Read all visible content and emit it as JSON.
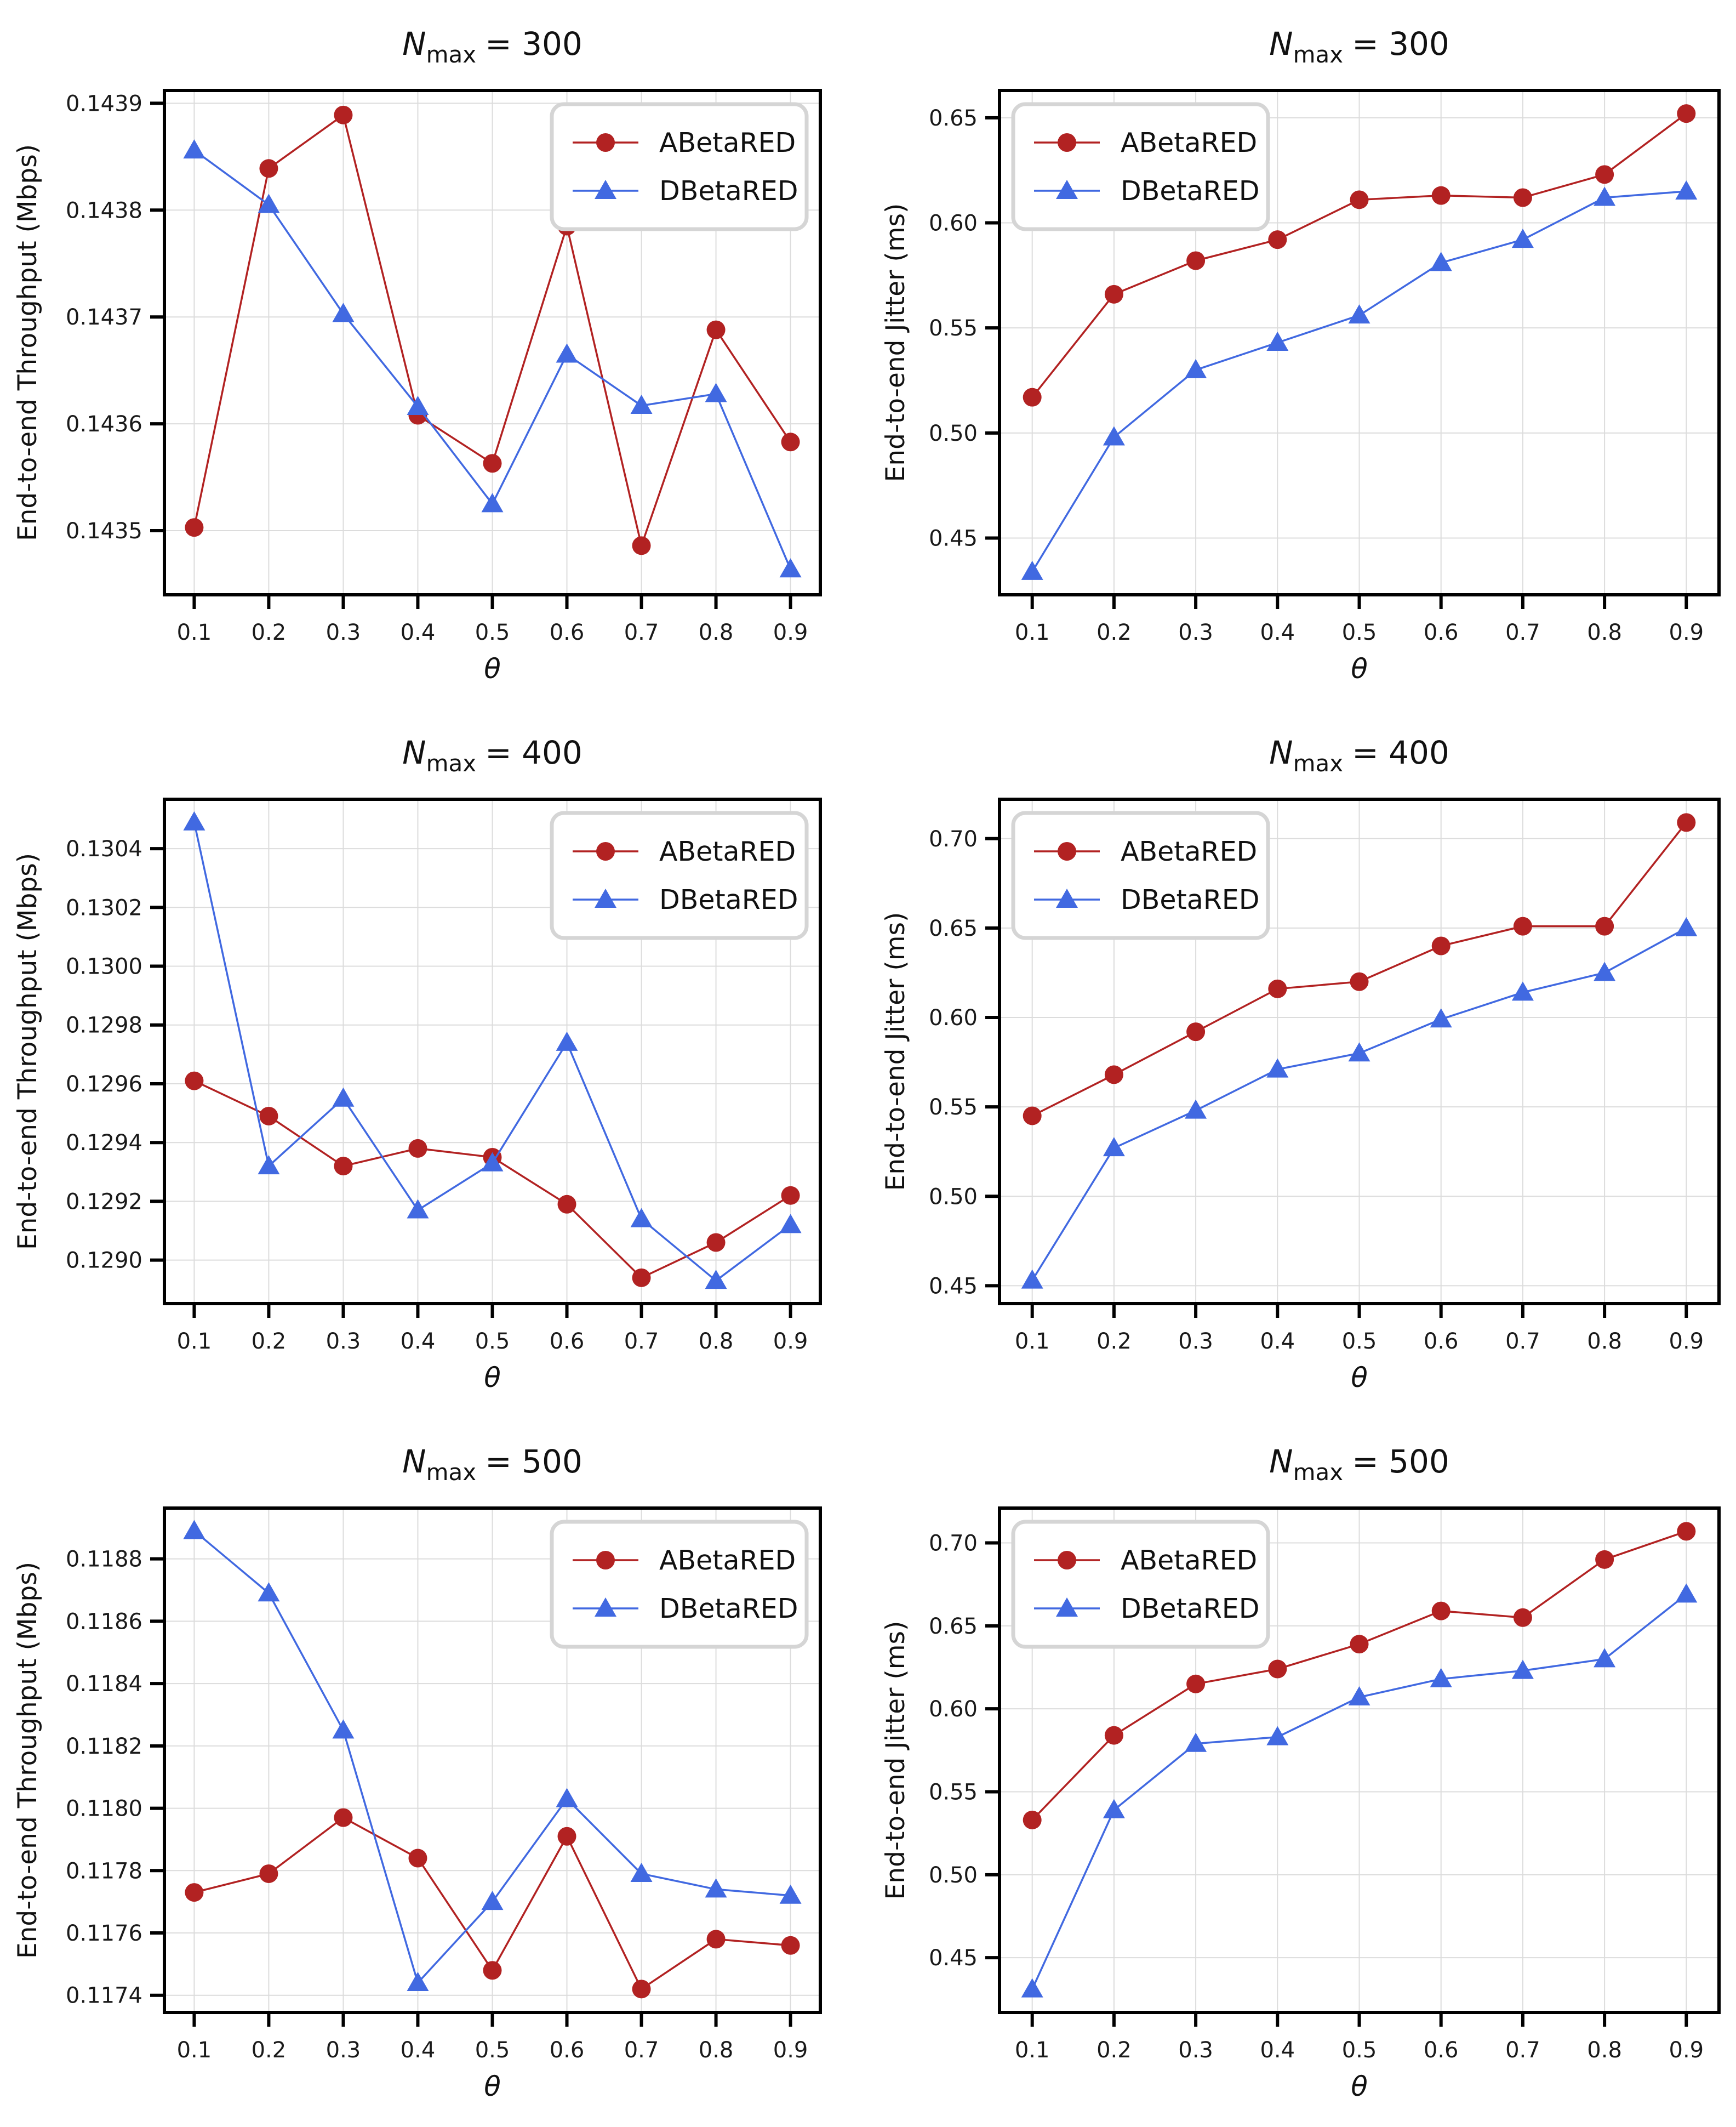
{
  "figure": {
    "description": "Grid of six line charts comparing ABetaRED and DBetaRED over theta",
    "colors": {
      "abetared": "#b22222",
      "dbetared": "#4169e1",
      "grid": "#dcdcdc",
      "spine": "#000000"
    },
    "legend_labels": [
      "ABetaRED",
      "DBetaRED"
    ]
  },
  "chart_data": [
    {
      "id": "throughput-nmax-300",
      "type": "line",
      "title": {
        "symbol": "N",
        "subscript": "max",
        "rest": "= 300"
      },
      "ylabel": "End-to-end Throughput (Mbps)",
      "xlabel": "θ",
      "x": [
        0.1,
        0.2,
        0.3,
        0.4,
        0.5,
        0.6,
        0.7,
        0.8,
        0.9
      ],
      "xtick_labels": [
        "0.1",
        "0.2",
        "0.3",
        "0.4",
        "0.5",
        "0.6",
        "0.7",
        "0.8",
        "0.9"
      ],
      "xlim": [
        0.06,
        0.94
      ],
      "ylim": [
        0.14344,
        0.143912
      ],
      "yticks": [
        0.1435,
        0.1436,
        0.1437,
        0.1438,
        0.1439
      ],
      "ytick_labels": [
        "0.1435",
        "0.1436",
        "0.1437",
        "0.1438",
        "0.1439"
      ],
      "grid": true,
      "legend_position": "top-right",
      "series": [
        {
          "name": "ABetaRED",
          "color": "#b22222",
          "marker": "circle",
          "values": [
            0.143503,
            0.143839,
            0.143889,
            0.143608,
            0.143563,
            0.143785,
            0.143486,
            0.143688,
            0.143583
          ]
        },
        {
          "name": "DBetaRED",
          "color": "#4169e1",
          "marker": "triangle",
          "values": [
            0.143856,
            0.143805,
            0.143703,
            0.143616,
            0.143525,
            0.143665,
            0.143617,
            0.143628,
            0.143464
          ]
        }
      ]
    },
    {
      "id": "jitter-nmax-300",
      "type": "line",
      "title": {
        "symbol": "N",
        "subscript": "max",
        "rest": "= 300"
      },
      "ylabel": "End-to-end Jitter (ms)",
      "xlabel": "θ",
      "x": [
        0.1,
        0.2,
        0.3,
        0.4,
        0.5,
        0.6,
        0.7,
        0.8,
        0.9
      ],
      "xtick_labels": [
        "0.1",
        "0.2",
        "0.3",
        "0.4",
        "0.5",
        "0.6",
        "0.7",
        "0.8",
        "0.9"
      ],
      "xlim": [
        0.06,
        0.94
      ],
      "ylim": [
        0.423,
        0.663
      ],
      "yticks": [
        0.45,
        0.5,
        0.55,
        0.6,
        0.65
      ],
      "ytick_labels": [
        "0.45",
        "0.50",
        "0.55",
        "0.60",
        "0.65"
      ],
      "grid": true,
      "legend_position": "top-left",
      "series": [
        {
          "name": "ABetaRED",
          "color": "#b22222",
          "marker": "circle",
          "values": [
            0.517,
            0.566,
            0.582,
            0.592,
            0.611,
            0.613,
            0.612,
            0.623,
            0.652
          ]
        },
        {
          "name": "DBetaRED",
          "color": "#4169e1",
          "marker": "triangle",
          "values": [
            0.434,
            0.498,
            0.53,
            0.543,
            0.556,
            0.581,
            0.592,
            0.612,
            0.615
          ]
        }
      ]
    },
    {
      "id": "throughput-nmax-400",
      "type": "line",
      "title": {
        "symbol": "N",
        "subscript": "max",
        "rest": "= 400"
      },
      "ylabel": "End-to-end Throughput (Mbps)",
      "xlabel": "θ",
      "x": [
        0.1,
        0.2,
        0.3,
        0.4,
        0.5,
        0.6,
        0.7,
        0.8,
        0.9
      ],
      "xtick_labels": [
        "0.1",
        "0.2",
        "0.3",
        "0.4",
        "0.5",
        "0.6",
        "0.7",
        "0.8",
        "0.9"
      ],
      "xlim": [
        0.06,
        0.94
      ],
      "ylim": [
        0.128852,
        0.130568
      ],
      "yticks": [
        0.129,
        0.1292,
        0.1294,
        0.1296,
        0.1298,
        0.13,
        0.1302,
        0.1304
      ],
      "ytick_labels": [
        "0.1290",
        "0.1292",
        "0.1294",
        "0.1296",
        "0.1298",
        "0.1300",
        "0.1302",
        "0.1304"
      ],
      "grid": true,
      "legend_position": "top-right",
      "series": [
        {
          "name": "ABetaRED",
          "color": "#b22222",
          "marker": "circle",
          "values": [
            0.12961,
            0.12949,
            0.12932,
            0.12938,
            0.12935,
            0.12919,
            0.12894,
            0.12906,
            0.12922
          ]
        },
        {
          "name": "DBetaRED",
          "color": "#4169e1",
          "marker": "triangle",
          "values": [
            0.13049,
            0.12932,
            0.12955,
            0.12917,
            0.12933,
            0.12974,
            0.12914,
            0.12893,
            0.12912
          ]
        }
      ]
    },
    {
      "id": "jitter-nmax-400",
      "type": "line",
      "title": {
        "symbol": "N",
        "subscript": "max",
        "rest": "= 400"
      },
      "ylabel": "End-to-end Jitter (ms)",
      "xlabel": "θ",
      "x": [
        0.1,
        0.2,
        0.3,
        0.4,
        0.5,
        0.6,
        0.7,
        0.8,
        0.9
      ],
      "xtick_labels": [
        "0.1",
        "0.2",
        "0.3",
        "0.4",
        "0.5",
        "0.6",
        "0.7",
        "0.8",
        "0.9"
      ],
      "xlim": [
        0.06,
        0.94
      ],
      "ylim": [
        0.44,
        0.722
      ],
      "yticks": [
        0.45,
        0.5,
        0.55,
        0.6,
        0.65,
        0.7
      ],
      "ytick_labels": [
        "0.45",
        "0.50",
        "0.55",
        "0.60",
        "0.65",
        "0.70"
      ],
      "grid": true,
      "legend_position": "top-left",
      "series": [
        {
          "name": "ABetaRED",
          "color": "#b22222",
          "marker": "circle",
          "values": [
            0.545,
            0.568,
            0.592,
            0.616,
            0.62,
            0.64,
            0.651,
            0.651,
            0.709
          ]
        },
        {
          "name": "DBetaRED",
          "color": "#4169e1",
          "marker": "triangle",
          "values": [
            0.453,
            0.527,
            0.548,
            0.571,
            0.58,
            0.599,
            0.614,
            0.625,
            0.65
          ]
        }
      ]
    },
    {
      "id": "throughput-nmax-500",
      "type": "line",
      "title": {
        "symbol": "N",
        "subscript": "max",
        "rest": "= 500"
      },
      "ylabel": "End-to-end Throughput (Mbps)",
      "xlabel": "θ",
      "x": [
        0.1,
        0.2,
        0.3,
        0.4,
        0.5,
        0.6,
        0.7,
        0.8,
        0.9
      ],
      "xtick_labels": [
        "0.1",
        "0.2",
        "0.3",
        "0.4",
        "0.5",
        "0.6",
        "0.7",
        "0.8",
        "0.9"
      ],
      "xlim": [
        0.06,
        0.94
      ],
      "ylim": [
        0.117345,
        0.118963
      ],
      "yticks": [
        0.1174,
        0.1176,
        0.1178,
        0.118,
        0.1182,
        0.1184,
        0.1186,
        0.1188
      ],
      "ytick_labels": [
        "0.1174",
        "0.1176",
        "0.1178",
        "0.1180",
        "0.1182",
        "0.1184",
        "0.1186",
        "0.1188"
      ],
      "grid": true,
      "legend_position": "top-right",
      "series": [
        {
          "name": "ABetaRED",
          "color": "#b22222",
          "marker": "circle",
          "values": [
            0.11773,
            0.11779,
            0.11797,
            0.11784,
            0.11748,
            0.11791,
            0.11742,
            0.11758,
            0.11756
          ]
        },
        {
          "name": "DBetaRED",
          "color": "#4169e1",
          "marker": "triangle",
          "values": [
            0.11889,
            0.11869,
            0.11825,
            0.11744,
            0.1177,
            0.11803,
            0.11779,
            0.11774,
            0.11772
          ]
        }
      ]
    },
    {
      "id": "jitter-nmax-500",
      "type": "line",
      "title": {
        "symbol": "N",
        "subscript": "max",
        "rest": "= 500"
      },
      "ylabel": "End-to-end Jitter (ms)",
      "xlabel": "θ",
      "x": [
        0.1,
        0.2,
        0.3,
        0.4,
        0.5,
        0.6,
        0.7,
        0.8,
        0.9
      ],
      "xtick_labels": [
        "0.1",
        "0.2",
        "0.3",
        "0.4",
        "0.5",
        "0.6",
        "0.7",
        "0.8",
        "0.9"
      ],
      "xlim": [
        0.06,
        0.94
      ],
      "ylim": [
        0.417,
        0.721
      ],
      "yticks": [
        0.45,
        0.5,
        0.55,
        0.6,
        0.65,
        0.7
      ],
      "ytick_labels": [
        "0.45",
        "0.50",
        "0.55",
        "0.60",
        "0.65",
        "0.70"
      ],
      "grid": true,
      "legend_position": "top-left",
      "series": [
        {
          "name": "ABetaRED",
          "color": "#b22222",
          "marker": "circle",
          "values": [
            0.533,
            0.584,
            0.615,
            0.624,
            0.639,
            0.659,
            0.655,
            0.69,
            0.707
          ]
        },
        {
          "name": "DBetaRED",
          "color": "#4169e1",
          "marker": "triangle",
          "values": [
            0.431,
            0.539,
            0.579,
            0.583,
            0.607,
            0.618,
            0.623,
            0.63,
            0.669
          ]
        }
      ]
    }
  ]
}
